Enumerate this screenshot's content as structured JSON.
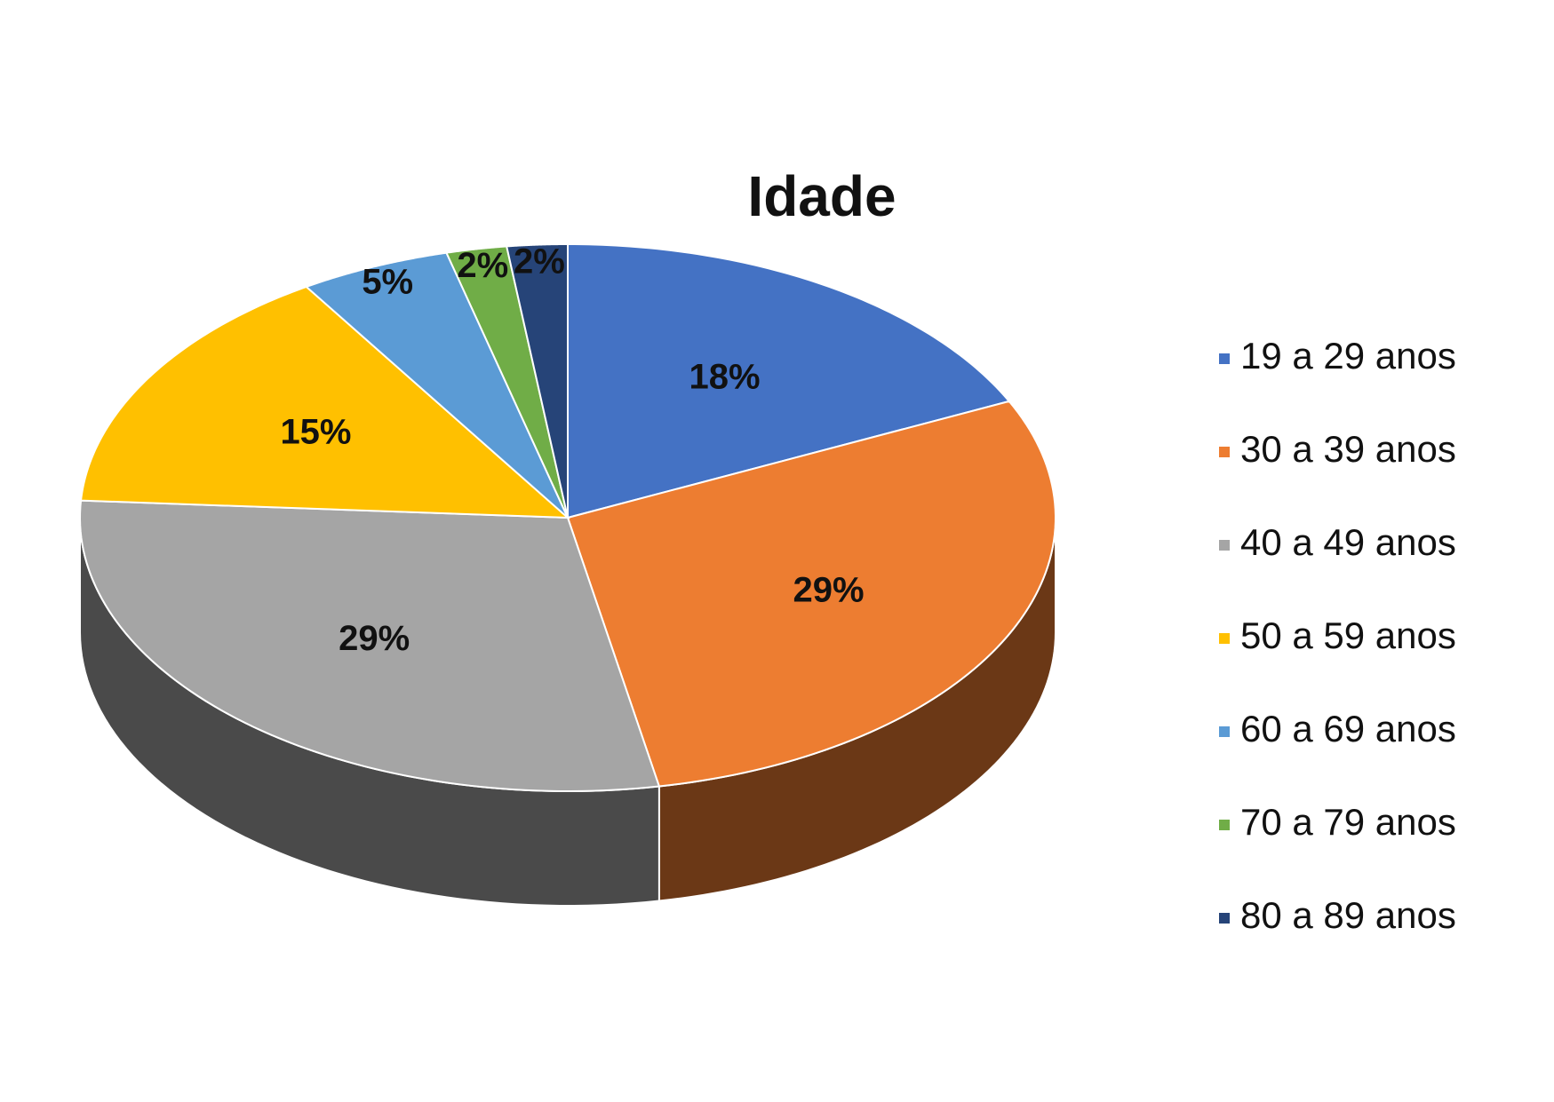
{
  "chart_data": {
    "type": "pie",
    "title": "Idade",
    "categories": [
      "19 a 29 anos",
      "30 a 39 anos",
      "40 a 49 anos",
      "50 a 59 anos",
      "60 a 69 anos",
      "70 a 79 anos",
      "80 a 89 anos"
    ],
    "values": [
      18,
      29,
      29,
      15,
      5,
      2,
      2
    ],
    "value_labels": [
      "18%",
      "29%",
      "29%",
      "15%",
      "5%",
      "2%",
      "2%"
    ],
    "colors": [
      "#4472c4",
      "#ed7d31",
      "#a5a5a5",
      "#ffc000",
      "#5b9bd5",
      "#70ad47",
      "#264478"
    ]
  }
}
